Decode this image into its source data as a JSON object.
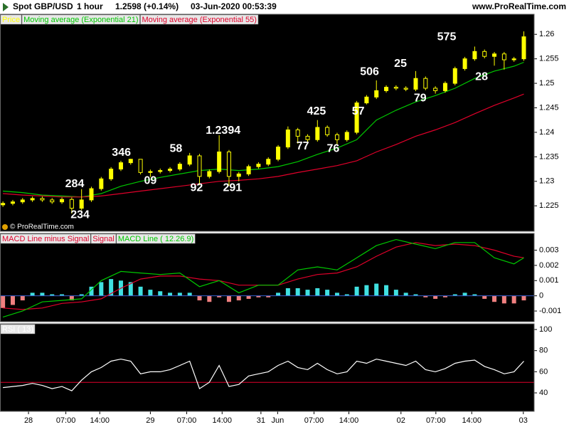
{
  "header": {
    "symbol": "Spot GBP/USD",
    "interval": "1 hour",
    "price": "1.2598 (+0.14%)",
    "time": "03-Jun-2020 00:53:39",
    "site": "www.ProRealTime.com"
  },
  "chart_data": [
    {
      "type": "candlestick",
      "name": "Price",
      "color": "#ffff00",
      "watermark": "© ProRealTime.com",
      "xlim": [
        -0.6,
        108.1
      ],
      "ylim": [
        1.2198,
        1.2641
      ],
      "yticks": [
        1.225,
        1.23,
        1.235,
        1.24,
        1.245,
        1.25,
        1.255,
        1.26
      ],
      "x": [
        0,
        2,
        4,
        6,
        8,
        10,
        12,
        14,
        16,
        18,
        20,
        22,
        24,
        26,
        28,
        30,
        32,
        34,
        36,
        38,
        40,
        42,
        44,
        46,
        48,
        50,
        52,
        54,
        56,
        58,
        60,
        62,
        64,
        66,
        68,
        70,
        72,
        74,
        76,
        78,
        80,
        82,
        84,
        86,
        88,
        90,
        92,
        94,
        96,
        98,
        100,
        102,
        104,
        106
      ],
      "open": [
        1.2252,
        1.2255,
        1.2258,
        1.2262,
        1.2265,
        1.2262,
        1.2258,
        1.2263,
        1.2245,
        1.2262,
        1.2285,
        1.2305,
        1.2325,
        1.2338,
        1.2345,
        1.2318,
        1.232,
        1.2322,
        1.2325,
        1.2335,
        1.2352,
        1.231,
        1.232,
        1.236,
        1.231,
        1.2315,
        1.233,
        1.2335,
        1.2345,
        1.237,
        1.2405,
        1.2392,
        1.2385,
        1.241,
        1.2395,
        1.2385,
        1.24,
        1.246,
        1.2472,
        1.2485,
        1.2492,
        1.249,
        1.2488,
        1.251,
        1.249,
        1.2485,
        1.25,
        1.253,
        1.255,
        1.2565,
        1.2555,
        1.256,
        1.2548,
        1.255
      ],
      "high": [
        1.2259,
        1.2262,
        1.2266,
        1.2269,
        1.2269,
        1.2266,
        1.2267,
        1.2267,
        1.2284,
        1.2289,
        1.2309,
        1.2329,
        1.2342,
        1.2346,
        1.2345,
        1.2324,
        1.2326,
        1.2329,
        1.2339,
        1.2358,
        1.2356,
        1.2324,
        1.2394,
        1.2364,
        1.2319,
        1.2334,
        1.2339,
        1.2349,
        1.2374,
        1.2412,
        1.2409,
        1.2396,
        1.2425,
        1.2414,
        1.2399,
        1.2404,
        1.2464,
        1.2476,
        1.2506,
        1.2496,
        1.2496,
        1.2494,
        1.2525,
        1.2514,
        1.2494,
        1.2504,
        1.2534,
        1.2554,
        1.2575,
        1.2569,
        1.2564,
        1.2564,
        1.2554,
        1.2606
      ],
      "low": [
        1.2248,
        1.2251,
        1.2254,
        1.2258,
        1.2258,
        1.2254,
        1.2254,
        1.2234,
        1.2241,
        1.2258,
        1.2281,
        1.2301,
        1.2321,
        1.2334,
        1.2314,
        1.2309,
        1.2316,
        1.2318,
        1.2321,
        1.2331,
        1.2292,
        1.2306,
        1.2316,
        1.2291,
        1.23,
        1.2311,
        1.2326,
        1.2331,
        1.2341,
        1.2366,
        1.2377,
        1.2381,
        1.2381,
        1.2391,
        1.2376,
        1.2381,
        1.2396,
        1.2457,
        1.2468,
        1.2481,
        1.2486,
        1.2484,
        1.2484,
        1.2486,
        1.2479,
        1.2481,
        1.2496,
        1.2526,
        1.2546,
        1.2551,
        1.2536,
        1.2528,
        1.2544,
        1.2546
      ],
      "close": [
        1.2255,
        1.2258,
        1.2262,
        1.2265,
        1.2262,
        1.2258,
        1.2263,
        1.2245,
        1.2262,
        1.2285,
        1.2305,
        1.2325,
        1.2338,
        1.2345,
        1.2318,
        1.232,
        1.2322,
        1.2325,
        1.2335,
        1.2352,
        1.231,
        1.232,
        1.236,
        1.231,
        1.2315,
        1.233,
        1.2335,
        1.2345,
        1.237,
        1.2405,
        1.2392,
        1.2385,
        1.241,
        1.2395,
        1.2385,
        1.24,
        1.246,
        1.2472,
        1.2485,
        1.2492,
        1.249,
        1.2488,
        1.251,
        1.249,
        1.2485,
        1.25,
        1.253,
        1.255,
        1.2565,
        1.2555,
        1.256,
        1.2548,
        1.255,
        1.2595
      ],
      "series": [
        {
          "name": "Moving average (Exponential 21)",
          "color": "#00c800",
          "x": [
            0,
            4,
            8,
            12,
            16,
            20,
            24,
            28,
            32,
            36,
            40,
            44,
            48,
            52,
            56,
            60,
            64,
            68,
            72,
            76,
            80,
            84,
            88,
            92,
            96,
            100,
            104,
            106
          ],
          "values": [
            1.228,
            1.2277,
            1.2272,
            1.227,
            1.2268,
            1.2275,
            1.229,
            1.23,
            1.2308,
            1.2315,
            1.2322,
            1.2325,
            1.2322,
            1.2325,
            1.233,
            1.234,
            1.2355,
            1.2368,
            1.2385,
            1.2425,
            1.2445,
            1.2462,
            1.2475,
            1.249,
            1.251,
            1.2525,
            1.2535,
            1.2543
          ]
        },
        {
          "name": "Moving average (Exponential 55)",
          "color": "#e0002a",
          "x": [
            0,
            4,
            8,
            12,
            16,
            20,
            24,
            28,
            32,
            36,
            40,
            44,
            48,
            52,
            56,
            60,
            64,
            68,
            72,
            76,
            80,
            84,
            88,
            92,
            96,
            100,
            104,
            106
          ],
          "values": [
            1.2275,
            1.2272,
            1.227,
            1.2268,
            1.2268,
            1.227,
            1.2275,
            1.228,
            1.2285,
            1.229,
            1.2295,
            1.23,
            1.2302,
            1.2305,
            1.231,
            1.2318,
            1.2325,
            1.2332,
            1.2342,
            1.236,
            1.2375,
            1.2392,
            1.2405,
            1.242,
            1.2438,
            1.2455,
            1.247,
            1.2478
          ]
        }
      ],
      "annotations": [
        {
          "text": "575",
          "x": 90.3,
          "y": 1.2594
        },
        {
          "text": "28",
          "x": 97.4,
          "y": 1.2513
        },
        {
          "text": "506",
          "x": 74.6,
          "y": 1.2523
        },
        {
          "text": "25",
          "x": 80.9,
          "y": 1.254
        },
        {
          "text": "79",
          "x": 84.9,
          "y": 1.2469
        },
        {
          "text": "425",
          "x": 63.8,
          "y": 1.2442
        },
        {
          "text": "57",
          "x": 72.3,
          "y": 1.2442
        },
        {
          "text": "77",
          "x": 61,
          "y": 1.2371
        },
        {
          "text": "76",
          "x": 67.2,
          "y": 1.2366
        },
        {
          "text": "1.2394",
          "x": 44.8,
          "y": 1.2403
        },
        {
          "text": "58",
          "x": 35.2,
          "y": 1.2366
        },
        {
          "text": "92",
          "x": 39.4,
          "y": 1.2286
        },
        {
          "text": "291",
          "x": 46.7,
          "y": 1.2286
        },
        {
          "text": "346",
          "x": 24.1,
          "y": 1.2358
        },
        {
          "text": "09",
          "x": 30,
          "y": 1.2301
        },
        {
          "text": "284",
          "x": 14.6,
          "y": 1.2294
        },
        {
          "text": "234",
          "x": 15.7,
          "y": 1.2231
        }
      ]
    },
    {
      "type": "macd",
      "xlim": [
        -0.6,
        108.1
      ],
      "ylim": [
        -0.0017,
        0.0041
      ],
      "yticks": [
        -0.001,
        0,
        0.001,
        0.002,
        0.003
      ],
      "series": [
        {
          "name": "MACD Line minus Signal",
          "kind": "bar",
          "color": "#40e0e0",
          "negative_color": "#f08080",
          "legend_color": "#e0002a",
          "x": [
            0,
            2,
            4,
            6,
            8,
            10,
            12,
            14,
            16,
            18,
            20,
            22,
            24,
            26,
            28,
            30,
            32,
            34,
            36,
            38,
            40,
            42,
            44,
            46,
            48,
            50,
            52,
            54,
            56,
            58,
            60,
            62,
            64,
            66,
            68,
            70,
            72,
            74,
            76,
            78,
            80,
            82,
            84,
            86,
            88,
            90,
            92,
            94,
            96,
            98,
            100,
            102,
            104,
            106
          ],
          "values": [
            -0.0008,
            -0.0006,
            -0.0003,
            0.0002,
            0.0002,
            0.0001,
            0.0001,
            -0.0003,
            0.0001,
            0.0006,
            0.0009,
            0.0011,
            0.001,
            0.0009,
            0.0006,
            0.0004,
            0.0003,
            0.0002,
            0.0002,
            0.0002,
            -0.0003,
            -0.0004,
            -0.0001,
            -0.0004,
            -0.0003,
            -0.0002,
            -0.0001,
            -0.0001,
            0.0002,
            0.0005,
            0.0005,
            0.0004,
            0.0005,
            0.0004,
            0.0002,
            0.0001,
            0.0006,
            0.0007,
            0.0008,
            0.0007,
            0.0004,
            0.0002,
            0.0001,
            -0.0001,
            -0.0002,
            -0.0001,
            0.0001,
            0.0002,
            0.0001,
            -0.0002,
            -0.0004,
            -0.0005,
            -0.0005,
            -0.0003
          ]
        },
        {
          "name": "Signal",
          "kind": "line",
          "color": "#e0002a",
          "x": [
            0,
            4,
            8,
            12,
            16,
            20,
            24,
            28,
            32,
            36,
            40,
            44,
            48,
            52,
            56,
            60,
            64,
            68,
            72,
            76,
            80,
            84,
            88,
            92,
            96,
            100,
            104,
            106
          ],
          "values": [
            -0.0008,
            -0.0009,
            -0.0008,
            -0.0005,
            -0.0004,
            -0.0002,
            0.0005,
            0.0011,
            0.0013,
            0.0013,
            0.0011,
            0.001,
            0.0007,
            0.0007,
            0.0007,
            0.0011,
            0.0014,
            0.0015,
            0.0019,
            0.0026,
            0.0032,
            0.0035,
            0.0033,
            0.0034,
            0.0033,
            0.003,
            0.0026,
            0.0025
          ]
        },
        {
          "name": "MACD Line ( 12.26.9)",
          "kind": "line",
          "color": "#00c800",
          "x": [
            0,
            4,
            8,
            12,
            16,
            20,
            24,
            28,
            32,
            36,
            40,
            44,
            48,
            52,
            56,
            60,
            64,
            68,
            72,
            76,
            80,
            84,
            88,
            92,
            96,
            100,
            104,
            106
          ],
          "values": [
            -0.0014,
            -0.001,
            -0.0004,
            -0.0003,
            -0.0002,
            0.001,
            0.0016,
            0.0015,
            0.0014,
            0.0015,
            0.0006,
            0.001,
            0.0002,
            0.0007,
            0.0007,
            0.0017,
            0.0019,
            0.0017,
            0.0025,
            0.0033,
            0.0037,
            0.0034,
            0.0031,
            0.0035,
            0.0035,
            0.0025,
            0.0021,
            0.0025
          ]
        }
      ]
    },
    {
      "type": "line",
      "xlim": [
        -0.6,
        108.1
      ],
      "ylim": [
        22.5,
        105.4
      ],
      "yticks": [
        40,
        60,
        80,
        100
      ],
      "hlines": [
        {
          "value": 50,
          "color": "#e0002a"
        }
      ],
      "series": [
        {
          "name": "RSI ( 13)",
          "color": "#ffffff",
          "x": [
            0,
            2,
            4,
            6,
            8,
            10,
            12,
            14,
            16,
            18,
            20,
            22,
            24,
            26,
            28,
            30,
            32,
            34,
            36,
            38,
            40,
            42,
            44,
            46,
            48,
            50,
            52,
            54,
            56,
            58,
            60,
            62,
            64,
            66,
            68,
            70,
            72,
            74,
            76,
            78,
            80,
            82,
            84,
            86,
            88,
            90,
            92,
            94,
            96,
            98,
            100,
            102,
            104,
            106
          ],
          "values": [
            45,
            46,
            47,
            49,
            47,
            44,
            46,
            42,
            52,
            60,
            64,
            70,
            72,
            70,
            58,
            60,
            60,
            62,
            66,
            70,
            44,
            50,
            66,
            46,
            48,
            56,
            58,
            60,
            66,
            70,
            64,
            62,
            68,
            62,
            58,
            60,
            70,
            68,
            72,
            70,
            68,
            66,
            70,
            62,
            60,
            63,
            68,
            70,
            71,
            65,
            62,
            58,
            60,
            70
          ]
        }
      ],
      "xticks": [
        {
          "value": 5.2,
          "label": "28"
        },
        {
          "value": 12.8,
          "label": "07:00"
        },
        {
          "value": 19.7,
          "label": "14:00"
        },
        {
          "value": 30,
          "label": "29"
        },
        {
          "value": 37.4,
          "label": "07:00"
        },
        {
          "value": 44.6,
          "label": "14:00"
        },
        {
          "value": 52.5,
          "label": "31"
        },
        {
          "value": 55.9,
          "label": "Jun"
        },
        {
          "value": 63.3,
          "label": "07:00"
        },
        {
          "value": 70.4,
          "label": "14:00"
        },
        {
          "value": 81,
          "label": "02"
        },
        {
          "value": 88.1,
          "label": "07:00"
        },
        {
          "value": 95.4,
          "label": "14:00"
        },
        {
          "value": 105.9,
          "label": "03"
        }
      ]
    }
  ]
}
